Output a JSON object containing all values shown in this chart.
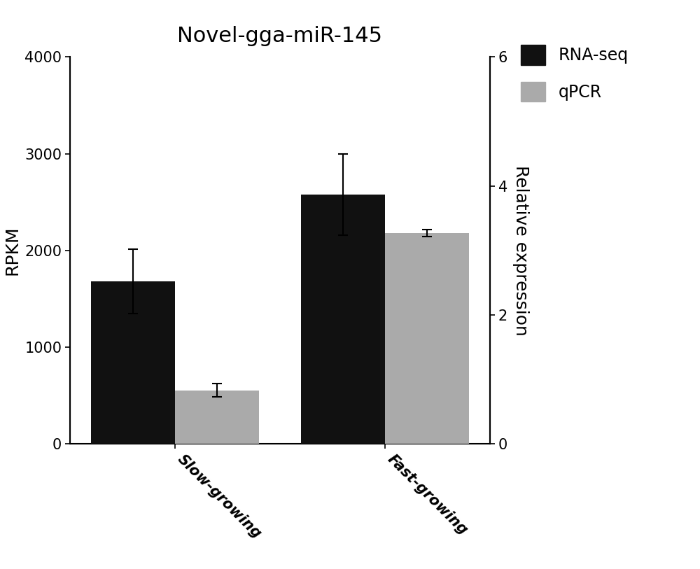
{
  "title": "Novel-gga-miR-145",
  "title_fontsize": 22,
  "categories": [
    "Slow-growing",
    "Fast-growing"
  ],
  "rnaseq_values": [
    1680,
    2580
  ],
  "rnaseq_errors": [
    330,
    420
  ],
  "qpcr_values": [
    0.83,
    3.27
  ],
  "qpcr_errors": [
    0.1,
    0.055
  ],
  "rnaseq_color": "#111111",
  "qpcr_color": "#aaaaaa",
  "ylabel_left": "RPKM",
  "ylabel_right": "Relative expression",
  "ylim_left": [
    0,
    4000
  ],
  "ylim_right": [
    0,
    6
  ],
  "yticks_left": [
    0,
    1000,
    2000,
    3000,
    4000
  ],
  "yticks_right": [
    0,
    2,
    4,
    6
  ],
  "legend_labels": [
    "RNA-seq",
    "qPCR"
  ],
  "bar_width": 0.28,
  "background_color": "#ffffff",
  "tick_fontsize": 15,
  "legend_fontsize": 17,
  "label_fontsize": 18
}
